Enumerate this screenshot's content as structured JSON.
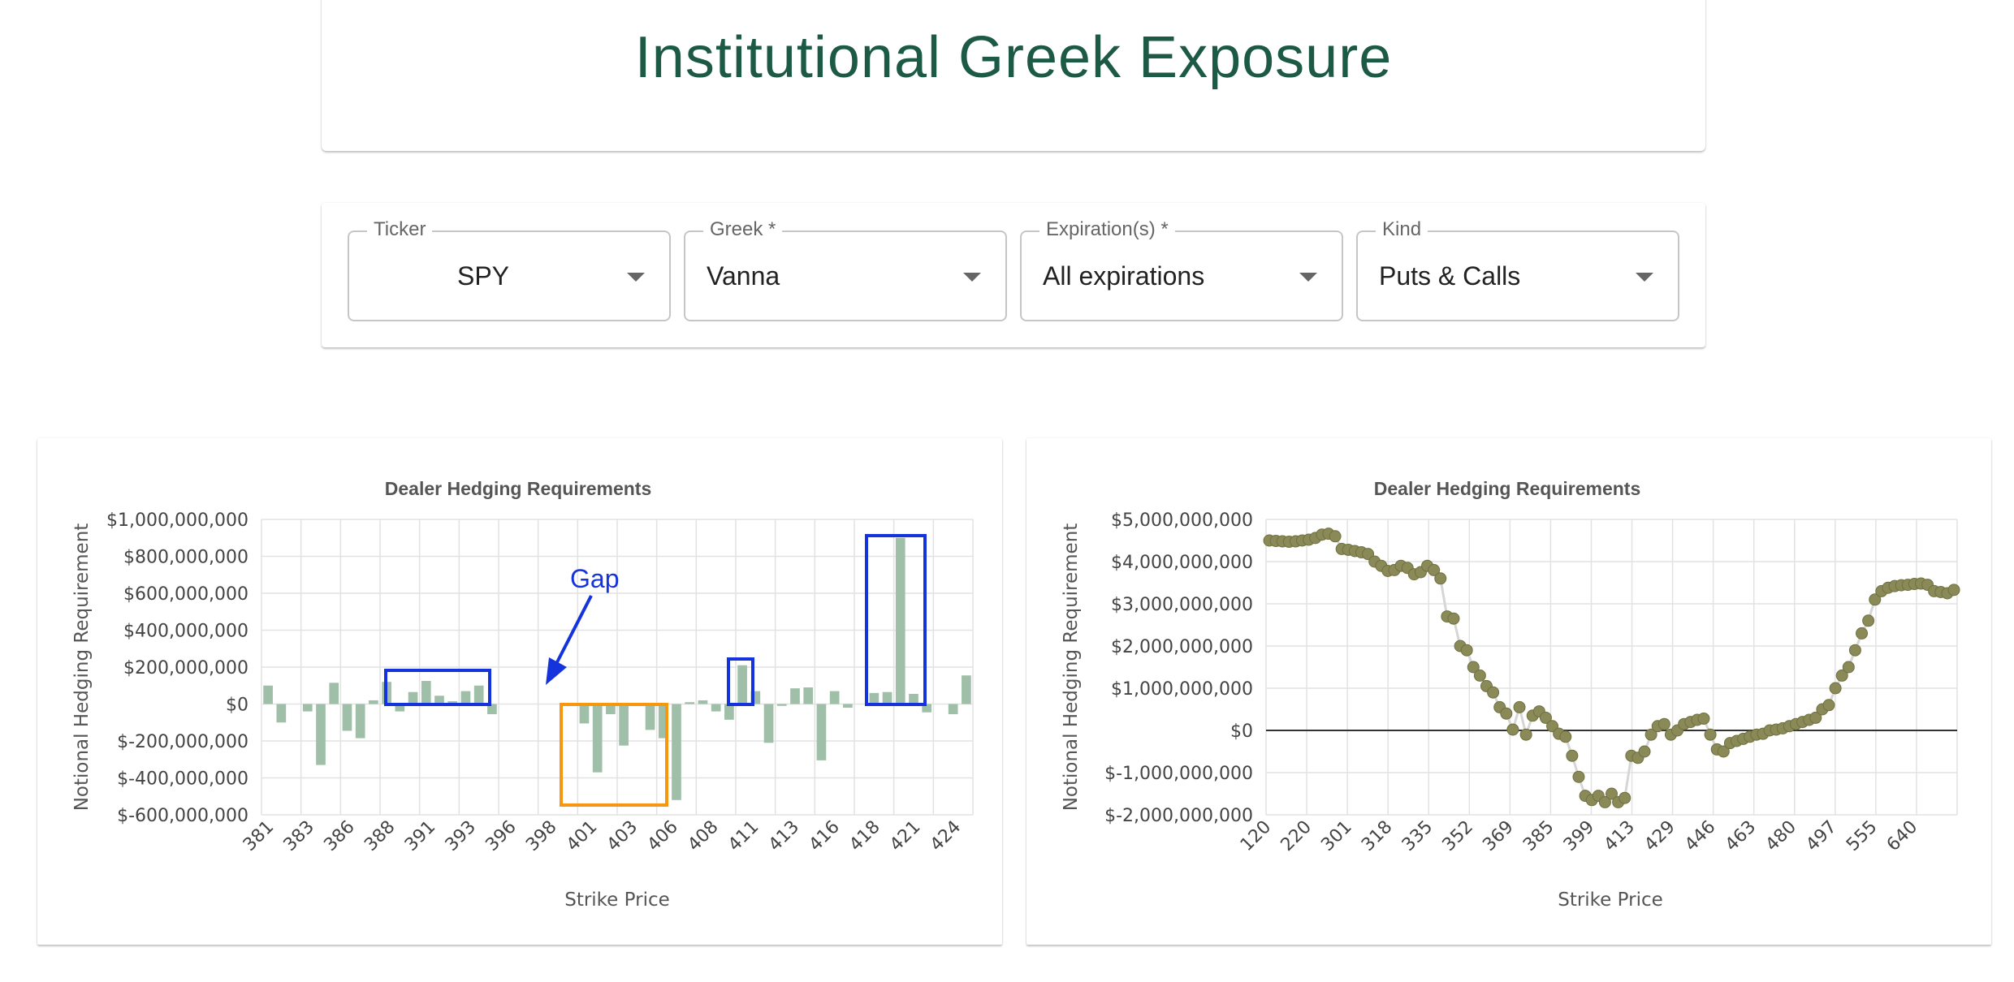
{
  "header": {
    "title": "Institutional Greek Exposure"
  },
  "controls": [
    {
      "label": "Ticker",
      "value": "SPY"
    },
    {
      "label": "Greek *",
      "value": "Vanna"
    },
    {
      "label": "Expiration(s) *",
      "value": "All expirations"
    },
    {
      "label": "Kind",
      "value": "Puts & Calls"
    }
  ],
  "colors": {
    "accent": "#1d5a45",
    "bar": "#9fbfa8",
    "scatter": "#8a8a58",
    "highlight_blue": "#1533dd",
    "highlight_orange": "#f7960f"
  },
  "annotations": {
    "gap_label": "Gap"
  },
  "chart_data": [
    {
      "type": "bar",
      "title": "Dealer Hedging Requirements",
      "xlabel": "Strike Price",
      "ylabel": "Notional Hedging Requirement",
      "ylim": [
        -600000000,
        1000000000
      ],
      "ytick_labels": [
        "$1,000,000,000",
        "$800,000,000",
        "$600,000,000",
        "$400,000,000",
        "$200,000,000",
        "$0",
        "$-200,000,000",
        "$-400,000,000",
        "$-600,000,000"
      ],
      "ytick_values": [
        1000000000,
        800000000,
        600000000,
        400000000,
        200000000,
        0,
        -200000000,
        -400000000,
        -600000000
      ],
      "xtick_labels": [
        "381",
        "383",
        "386",
        "388",
        "391",
        "393",
        "396",
        "398",
        "401",
        "403",
        "406",
        "408",
        "411",
        "413",
        "416",
        "418",
        "421",
        "424"
      ],
      "values": [
        100000000,
        -100000000,
        0,
        -40000000,
        -330000000,
        115000000,
        -145000000,
        -185000000,
        20000000,
        120000000,
        -40000000,
        65000000,
        125000000,
        45000000,
        15000000,
        70000000,
        100000000,
        -55000000,
        0,
        0,
        0,
        0,
        0,
        0,
        -105000000,
        -370000000,
        -55000000,
        -225000000,
        0,
        -140000000,
        -185000000,
        -520000000,
        10000000,
        20000000,
        -40000000,
        -85000000,
        210000000,
        70000000,
        -210000000,
        -10000000,
        85000000,
        90000000,
        -305000000,
        70000000,
        -20000000,
        0,
        60000000,
        65000000,
        900000000,
        55000000,
        -45000000,
        0,
        -55000000,
        155000000
      ],
      "grid": true,
      "legend": "none"
    },
    {
      "type": "scatter",
      "title": "Dealer Hedging Requirements",
      "xlabel": "Strike Price",
      "ylabel": "Notional Hedging Requirement",
      "ylim": [
        -2000000000,
        5000000000
      ],
      "ytick_labels": [
        "$5,000,000,000",
        "$4,000,000,000",
        "$3,000,000,000",
        "$2,000,000,000",
        "$1,000,000,000",
        "$0",
        "$-1,000,000,000",
        "$-2,000,000,000"
      ],
      "ytick_values": [
        5000000000,
        4000000000,
        3000000000,
        2000000000,
        1000000000,
        0,
        -1000000000,
        -2000000000
      ],
      "xtick_labels": [
        "120",
        "220",
        "301",
        "318",
        "335",
        "352",
        "369",
        "385",
        "399",
        "413",
        "429",
        "446",
        "463",
        "480",
        "497",
        "555",
        "640"
      ],
      "values": [
        4500000000,
        4490000000,
        4480000000,
        4470000000,
        4480000000,
        4500000000,
        4520000000,
        4560000000,
        4640000000,
        4660000000,
        4600000000,
        4300000000,
        4280000000,
        4250000000,
        4220000000,
        4180000000,
        4000000000,
        3900000000,
        3780000000,
        3800000000,
        3900000000,
        3850000000,
        3700000000,
        3750000000,
        3900000000,
        3800000000,
        3600000000,
        2700000000,
        2650000000,
        2000000000,
        1900000000,
        1500000000,
        1300000000,
        1050000000,
        900000000,
        550000000,
        400000000,
        20000000,
        550000000,
        -100000000,
        350000000,
        450000000,
        300000000,
        100000000,
        -80000000,
        -150000000,
        -600000000,
        -1100000000,
        -1550000000,
        -1650000000,
        -1550000000,
        -1700000000,
        -1500000000,
        -1700000000,
        -1600000000,
        -600000000,
        -650000000,
        -500000000,
        -100000000,
        100000000,
        150000000,
        -100000000,
        0,
        150000000,
        200000000,
        250000000,
        280000000,
        -100000000,
        -450000000,
        -500000000,
        -300000000,
        -250000000,
        -200000000,
        -150000000,
        -100000000,
        -80000000,
        0,
        20000000,
        50000000,
        100000000,
        150000000,
        200000000,
        250000000,
        300000000,
        500000000,
        600000000,
        1000000000,
        1300000000,
        1500000000,
        1900000000,
        2300000000,
        2600000000,
        3100000000,
        3300000000,
        3380000000,
        3420000000,
        3440000000,
        3450000000,
        3470000000,
        3480000000,
        3450000000,
        3300000000,
        3280000000,
        3250000000,
        3330000000
      ],
      "zero_line": true,
      "grid": true,
      "legend": "none"
    }
  ]
}
